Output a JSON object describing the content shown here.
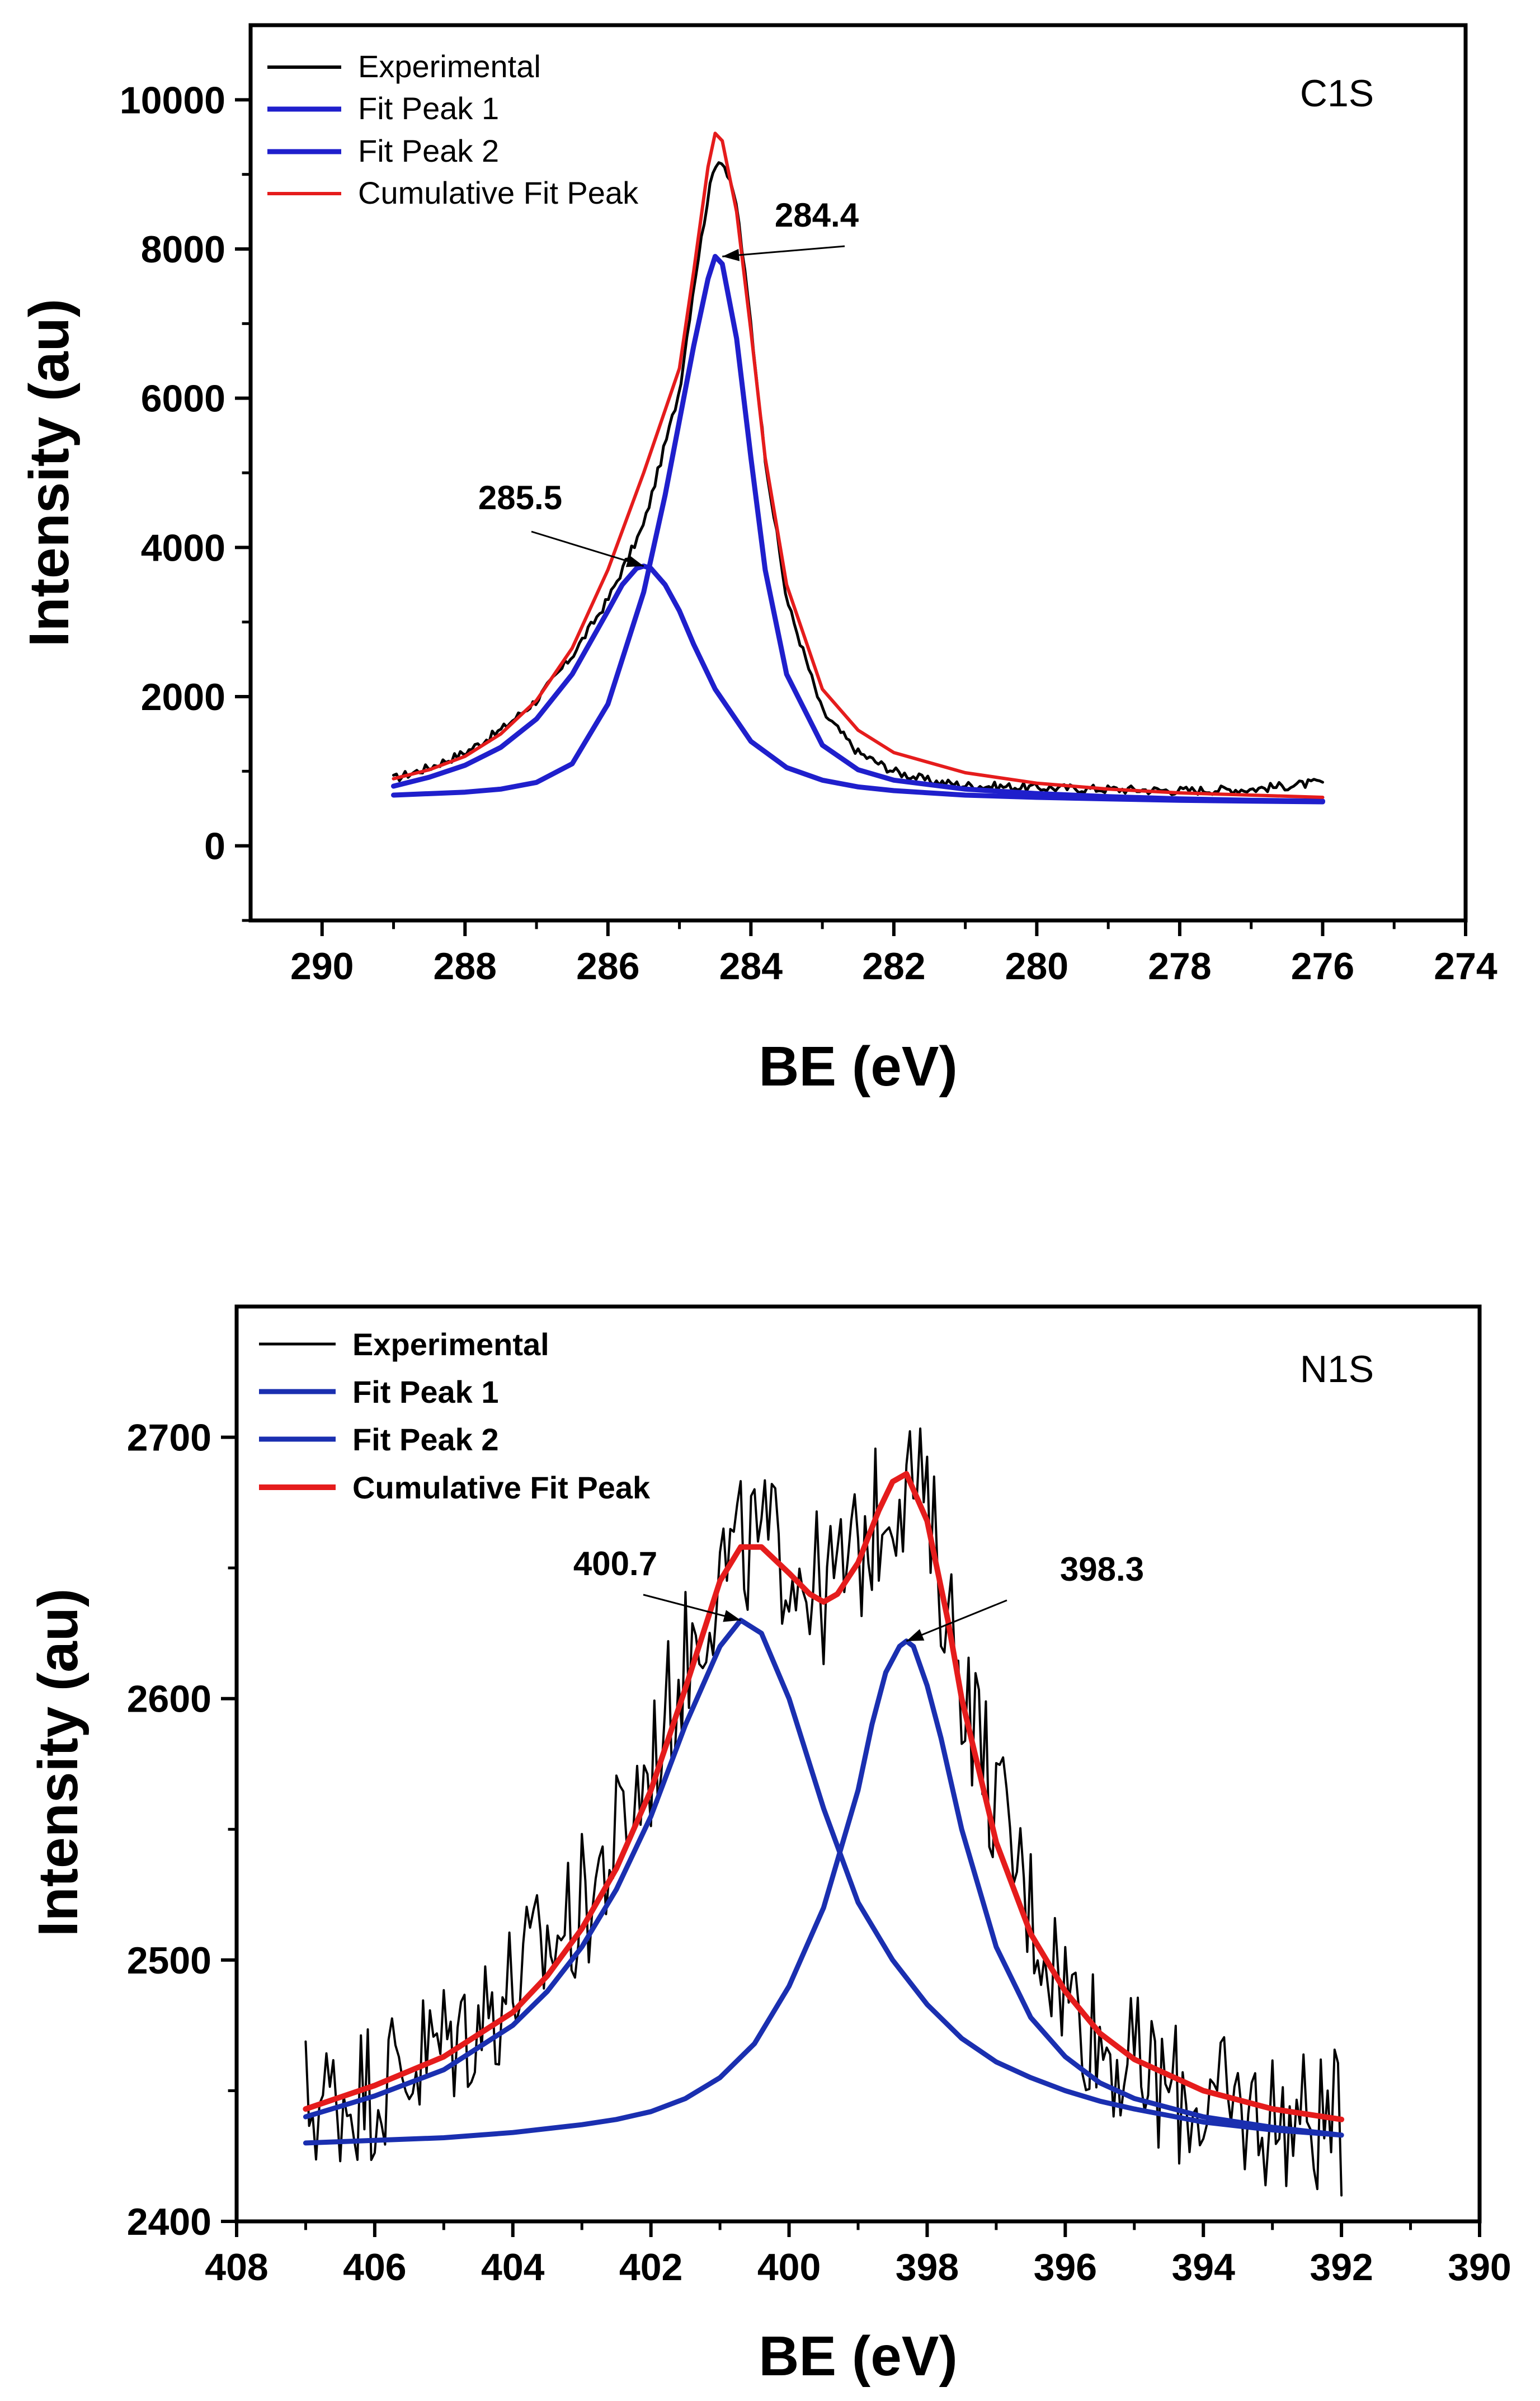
{
  "chart_data": [
    {
      "type": "line",
      "panel_label": "C1S",
      "xlabel": "BE (eV)",
      "ylabel": "Intensity (au)",
      "xlim": [
        291,
        274
      ],
      "ylim": [
        -1000,
        11000
      ],
      "xticks": [
        290,
        288,
        286,
        284,
        282,
        280,
        278,
        276,
        274
      ],
      "yticks": [
        0,
        2000,
        4000,
        6000,
        8000,
        10000
      ],
      "legend_position": "top-left",
      "series": [
        {
          "name": "Experimental",
          "color": "#000000",
          "x": [
            289,
            288.5,
            288,
            287.5,
            287,
            286.5,
            286,
            285.5,
            285,
            284.8,
            284.6,
            284.5,
            284.4,
            284.2,
            284,
            283.8,
            283.5,
            283,
            282.5,
            282,
            281.5,
            281,
            280,
            279,
            278,
            277,
            276
          ],
          "y": [
            900,
            1050,
            1250,
            1550,
            1950,
            2550,
            3300,
            4300,
            6100,
            7500,
            8700,
            9150,
            9200,
            8600,
            7000,
            5200,
            3300,
            1800,
            1250,
            1000,
            870,
            810,
            780,
            760,
            740,
            760,
            850
          ],
          "noisy": true
        },
        {
          "name": "Fit Peak 1",
          "color": "#1f1fcc",
          "x": [
            289,
            288,
            287.5,
            287,
            286.5,
            286,
            285.5,
            285.2,
            285,
            284.8,
            284.6,
            284.5,
            284.4,
            284.2,
            284,
            283.8,
            283.5,
            283,
            282.5,
            282,
            281,
            280,
            279,
            278,
            277,
            276
          ],
          "y": [
            680,
            720,
            760,
            850,
            1100,
            1900,
            3400,
            4700,
            5700,
            6700,
            7600,
            7900,
            7800,
            6800,
            5200,
            3700,
            2300,
            1350,
            1020,
            880,
            760,
            700,
            660,
            630,
            610,
            600
          ]
        },
        {
          "name": "Fit Peak 2",
          "color": "#1f1fcc",
          "x": [
            289,
            288.5,
            288,
            287.5,
            287,
            286.5,
            286,
            285.8,
            285.6,
            285.5,
            285.4,
            285.2,
            285,
            284.8,
            284.5,
            284,
            283.5,
            283,
            282.5,
            282,
            281,
            280,
            279,
            278,
            277,
            276
          ],
          "y": [
            800,
            920,
            1080,
            1320,
            1700,
            2300,
            3150,
            3500,
            3720,
            3750,
            3720,
            3500,
            3150,
            2700,
            2100,
            1400,
            1050,
            880,
            790,
            740,
            680,
            650,
            630,
            610,
            600,
            590
          ]
        },
        {
          "name": "Cumulative Fit Peak",
          "color": "#e51c1c",
          "x": [
            289,
            288.5,
            288,
            287.5,
            287,
            286.5,
            286,
            285.5,
            285,
            284.8,
            284.6,
            284.5,
            284.4,
            284.2,
            284,
            283.8,
            283.5,
            283,
            282.5,
            282,
            281,
            280,
            279,
            278,
            277,
            276
          ],
          "y": [
            900,
            1020,
            1200,
            1500,
            1950,
            2650,
            3700,
            5000,
            6400,
            7700,
            9100,
            9550,
            9450,
            8500,
            6900,
            5200,
            3500,
            2100,
            1550,
            1250,
            980,
            840,
            760,
            710,
            680,
            650
          ]
        }
      ],
      "annotations": [
        {
          "text": "284.4",
          "x": 284.4,
          "y": 7900
        },
        {
          "text": "285.5",
          "x": 285.5,
          "y": 3750
        }
      ]
    },
    {
      "type": "line",
      "panel_label": "N1S",
      "xlabel": "BE (eV)",
      "ylabel": "Intensity (au)",
      "xlim": [
        408,
        390
      ],
      "ylim": [
        2400,
        2750
      ],
      "xticks": [
        408,
        406,
        404,
        402,
        400,
        398,
        396,
        394,
        392,
        390
      ],
      "yticks": [
        2400,
        2500,
        2600,
        2700
      ],
      "legend_position": "top-left",
      "series": [
        {
          "name": "Experimental",
          "color": "#000000",
          "x": [
            407,
            406.5,
            406,
            405.5,
            405,
            404.5,
            404,
            403.5,
            403,
            402.5,
            402,
            401.5,
            401,
            400.5,
            400,
            399.5,
            399,
            398.5,
            398.2,
            398,
            397.5,
            397,
            396.5,
            396,
            395.5,
            395,
            394.5,
            394,
            393.5,
            393,
            392.5,
            392
          ],
          "y": [
            2445,
            2448,
            2452,
            2460,
            2468,
            2478,
            2490,
            2505,
            2520,
            2545,
            2575,
            2615,
            2650,
            2660,
            2655,
            2640,
            2655,
            2680,
            2685,
            2670,
            2610,
            2560,
            2520,
            2490,
            2470,
            2458,
            2450,
            2445,
            2442,
            2440,
            2438,
            2437
          ],
          "noisy": true
        },
        {
          "name": "Fit Peak 1",
          "color": "#1a2fb0",
          "x": [
            407,
            406,
            405,
            404,
            403.5,
            403,
            402.5,
            402,
            401.5,
            401,
            400.7,
            400.4,
            400,
            399.5,
            399,
            398.5,
            398,
            397.5,
            397,
            396.5,
            396,
            395.5,
            395,
            394,
            393,
            392
          ],
          "y": [
            2440,
            2448,
            2458,
            2475,
            2488,
            2505,
            2527,
            2555,
            2590,
            2620,
            2630,
            2625,
            2600,
            2558,
            2522,
            2500,
            2483,
            2470,
            2461,
            2455,
            2450,
            2446,
            2443,
            2438,
            2435,
            2433
          ]
        },
        {
          "name": "Fit Peak 2",
          "color": "#1a2fb0",
          "x": [
            407,
            405,
            404,
            403,
            402.5,
            402,
            401.5,
            401,
            400.5,
            400,
            399.5,
            399,
            398.8,
            398.6,
            398.4,
            398.3,
            398.2,
            398,
            397.8,
            397.5,
            397,
            396.5,
            396,
            395.5,
            395,
            394,
            393,
            392
          ],
          "y": [
            2430,
            2432,
            2434,
            2437,
            2439,
            2442,
            2447,
            2455,
            2468,
            2490,
            2520,
            2565,
            2590,
            2610,
            2620,
            2622,
            2620,
            2605,
            2585,
            2550,
            2505,
            2478,
            2463,
            2453,
            2447,
            2440,
            2436,
            2433
          ]
        },
        {
          "name": "Cumulative Fit Peak",
          "color": "#e51c1c",
          "x": [
            407,
            406,
            405,
            404,
            403.5,
            403,
            402.5,
            402,
            401.5,
            401,
            400.7,
            400.4,
            400,
            399.7,
            399.5,
            399.3,
            399,
            398.7,
            398.5,
            398.3,
            398,
            397.7,
            397.5,
            397,
            396.5,
            396,
            395.5,
            395,
            394,
            393,
            392
          ],
          "y": [
            2443,
            2452,
            2463,
            2480,
            2494,
            2512,
            2535,
            2565,
            2604,
            2645,
            2658,
            2658,
            2648,
            2640,
            2637,
            2640,
            2652,
            2672,
            2683,
            2686,
            2668,
            2630,
            2600,
            2545,
            2510,
            2488,
            2472,
            2462,
            2450,
            2443,
            2439
          ]
        }
      ],
      "annotations": [
        {
          "text": "400.7",
          "x": 400.7,
          "y": 2630
        },
        {
          "text": "398.3",
          "x": 398.3,
          "y": 2622
        }
      ]
    }
  ]
}
